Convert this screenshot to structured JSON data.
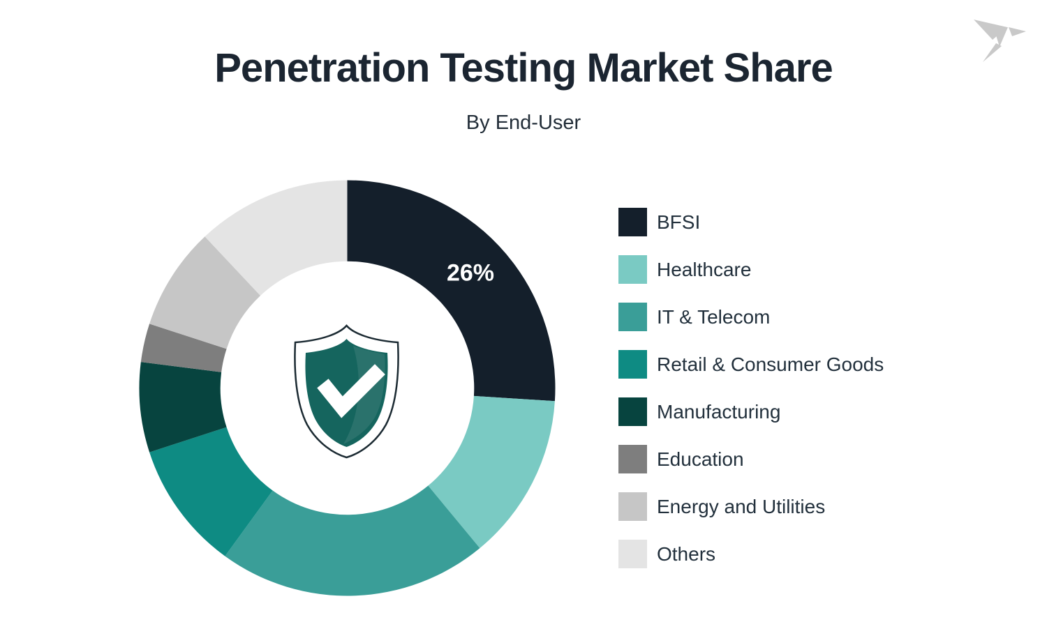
{
  "header": {
    "title": "Penetration Testing Market Share",
    "subtitle": "By End-User"
  },
  "logo": {
    "name": "origami-bird-logo",
    "color": "#c9c9c9"
  },
  "center_icon": {
    "name": "shield-check-icon",
    "shield_color": "#15655e",
    "outline_color": "#1b2a32",
    "check_color": "#ffffff"
  },
  "chart_data": {
    "type": "pie",
    "donut": true,
    "title": "Penetration Testing Market Share",
    "subtitle": "By End-User",
    "start_angle_deg": 0,
    "direction": "clockwise",
    "inner_radius_ratio": 0.61,
    "outer_radius_px": 298,
    "categories": [
      "BFSI",
      "Healthcare",
      "IT & Telecom",
      "Retail & Consumer Goods",
      "Manufacturing",
      "Education",
      "Energy and Utilities",
      "Others"
    ],
    "values": [
      26,
      13,
      21,
      10,
      7,
      3,
      8,
      12
    ],
    "colors": [
      "#141f2b",
      "#7acac3",
      "#3a9e98",
      "#0e8b83",
      "#07443f",
      "#7e7e7e",
      "#c6c6c6",
      "#e4e4e4"
    ],
    "data_labels": [
      "26%",
      "",
      "",
      "",
      "",
      "",
      "",
      ""
    ],
    "legend_position": "right",
    "grid": false
  },
  "legend": {
    "items": [
      {
        "label": "BFSI",
        "color": "#141f2b"
      },
      {
        "label": "Healthcare",
        "color": "#7acac3"
      },
      {
        "label": "IT & Telecom",
        "color": "#3a9e98"
      },
      {
        "label": "Retail & Consumer Goods",
        "color": "#0e8b83"
      },
      {
        "label": "Manufacturing",
        "color": "#07443f"
      },
      {
        "label": "Education",
        "color": "#7e7e7e"
      },
      {
        "label": "Energy and Utilities",
        "color": "#c6c6c6"
      },
      {
        "label": "Others",
        "color": "#e4e4e4"
      }
    ]
  }
}
